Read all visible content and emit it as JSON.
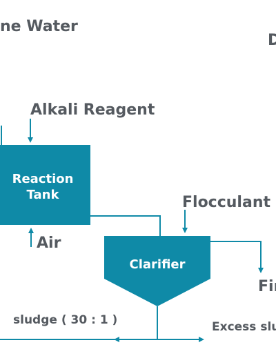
{
  "labels": {
    "title_fragment": "ne Water",
    "right_fragment": "D",
    "alkali": "Alkali Reagent",
    "air": "Air",
    "flocculant": "Flocculant",
    "final_fragment": "Fir",
    "sludge_ratio": "sludge ( 30 : 1 )",
    "excess_fragment": "Excess slu"
  },
  "nodes": {
    "reaction_tank_line1": "Reaction",
    "reaction_tank_line2": "Tank",
    "clarifier": "Clarifier"
  },
  "colors": {
    "process": "#0f8aa7",
    "text": "#555a60",
    "node_text": "#ffffff"
  }
}
